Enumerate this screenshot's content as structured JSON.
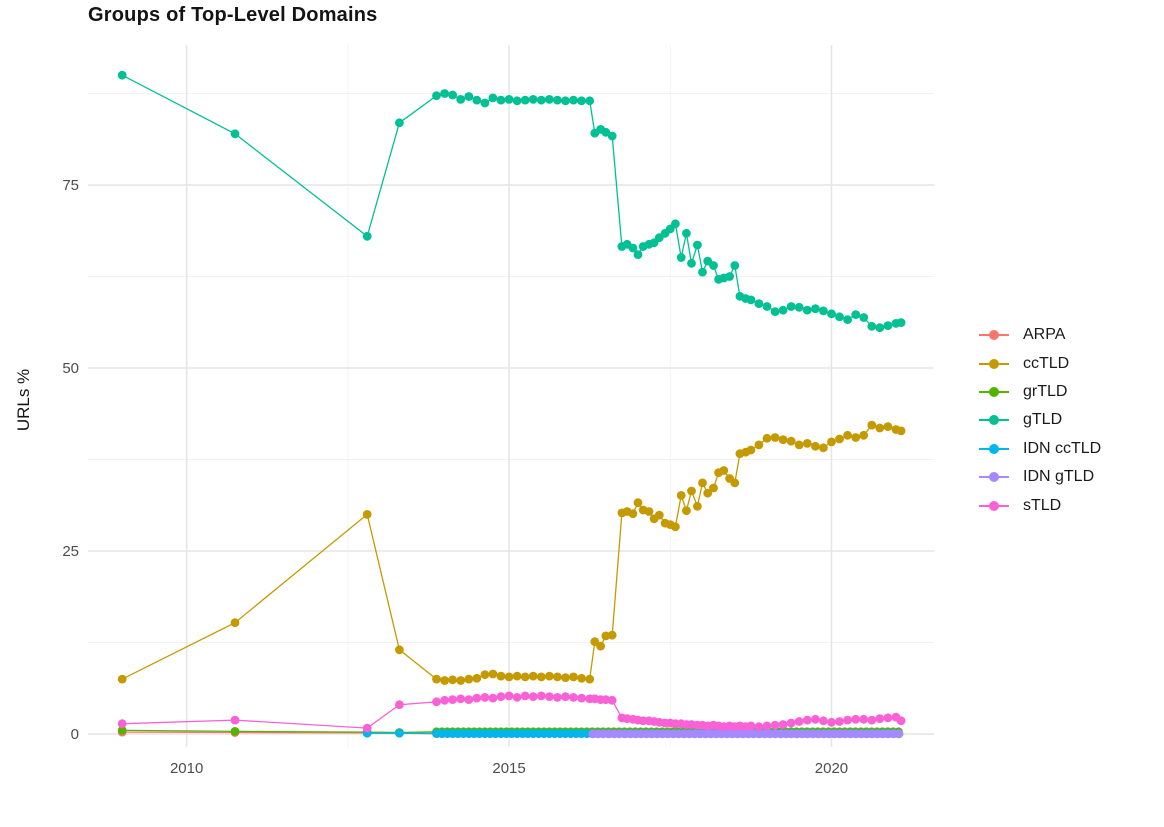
{
  "chart_data": {
    "type": "line",
    "title": "Groups of Top-Level Domains",
    "xlabel": "",
    "ylabel": "URLs %",
    "grid": true,
    "legend_position": "right",
    "xlim": [
      2008.47,
      2021.59
    ],
    "ylim": [
      -1.78,
      94.13
    ],
    "x_axis": {
      "ticks": [
        {
          "value": 2010,
          "label": "2010"
        },
        {
          "value": 2015,
          "label": "2015"
        },
        {
          "value": 2020,
          "label": "2020"
        }
      ],
      "minor": [
        2012.5,
        2017.5
      ]
    },
    "y_axis": {
      "ticks": [
        {
          "value": 0,
          "label": "0"
        },
        {
          "value": 25,
          "label": "25"
        },
        {
          "value": 50,
          "label": "50"
        },
        {
          "value": 75,
          "label": "75"
        }
      ],
      "minor": [
        12.5,
        37.5,
        62.5,
        87.5
      ]
    },
    "series": [
      {
        "name": "ARPA",
        "color": "#F8766D",
        "points": [
          [
            2009.0,
            0.25
          ],
          [
            2010.75,
            0.2
          ],
          [
            2012.8,
            0.15
          ],
          [
            2013.3,
            0.1
          ]
        ],
        "fill": {
          "from": 2013.875,
          "to": 2021.08,
          "step": 0.0833,
          "value": 0.05
        }
      },
      {
        "name": "ccTLD",
        "color": "#C49A00",
        "points": [
          [
            2009.0,
            7.5
          ],
          [
            2010.75,
            15.2
          ],
          [
            2012.8,
            30.0
          ],
          [
            2013.3,
            11.5
          ],
          [
            2013.875,
            7.5
          ],
          [
            2014.0,
            7.3
          ],
          [
            2014.125,
            7.4
          ],
          [
            2014.25,
            7.3
          ],
          [
            2014.375,
            7.5
          ],
          [
            2014.5,
            7.6
          ],
          [
            2014.625,
            8.1
          ],
          [
            2014.75,
            8.2
          ],
          [
            2014.875,
            7.9
          ],
          [
            2015.0,
            7.8
          ],
          [
            2015.125,
            7.9
          ],
          [
            2015.25,
            7.8
          ],
          [
            2015.375,
            7.9
          ],
          [
            2015.5,
            7.8
          ],
          [
            2015.625,
            7.9
          ],
          [
            2015.75,
            7.8
          ],
          [
            2015.875,
            7.7
          ],
          [
            2016.0,
            7.8
          ],
          [
            2016.125,
            7.6
          ],
          [
            2016.25,
            7.5
          ],
          [
            2016.33,
            12.6
          ],
          [
            2016.42,
            12.0
          ],
          [
            2016.5,
            13.4
          ],
          [
            2016.6,
            13.5
          ],
          [
            2016.75,
            30.2
          ],
          [
            2016.83,
            30.4
          ],
          [
            2016.92,
            30.1
          ],
          [
            2017.0,
            31.6
          ],
          [
            2017.08,
            30.6
          ],
          [
            2017.17,
            30.4
          ],
          [
            2017.25,
            29.4
          ],
          [
            2017.33,
            29.9
          ],
          [
            2017.42,
            28.8
          ],
          [
            2017.5,
            28.6
          ],
          [
            2017.58,
            28.3
          ],
          [
            2017.67,
            32.6
          ],
          [
            2017.75,
            30.5
          ],
          [
            2017.83,
            33.2
          ],
          [
            2017.92,
            31.1
          ],
          [
            2018.0,
            34.3
          ],
          [
            2018.08,
            32.9
          ],
          [
            2018.17,
            33.6
          ],
          [
            2018.25,
            35.7
          ],
          [
            2018.33,
            36.0
          ],
          [
            2018.42,
            34.9
          ],
          [
            2018.5,
            34.3
          ],
          [
            2018.58,
            38.3
          ],
          [
            2018.67,
            38.5
          ],
          [
            2018.75,
            38.8
          ],
          [
            2018.875,
            39.5
          ],
          [
            2019.0,
            40.4
          ],
          [
            2019.125,
            40.5
          ],
          [
            2019.25,
            40.2
          ],
          [
            2019.375,
            40.0
          ],
          [
            2019.5,
            39.5
          ],
          [
            2019.625,
            39.7
          ],
          [
            2019.75,
            39.3
          ],
          [
            2019.875,
            39.1
          ],
          [
            2020.0,
            39.9
          ],
          [
            2020.125,
            40.3
          ],
          [
            2020.25,
            40.8
          ],
          [
            2020.375,
            40.5
          ],
          [
            2020.5,
            40.8
          ],
          [
            2020.625,
            42.2
          ],
          [
            2020.75,
            41.8
          ],
          [
            2020.875,
            42.0
          ],
          [
            2021.0,
            41.6
          ],
          [
            2021.08,
            41.4
          ]
        ]
      },
      {
        "name": "grTLD",
        "color": "#53B400",
        "points": [
          [
            2009.0,
            0.5
          ],
          [
            2010.75,
            0.35
          ],
          [
            2012.8,
            0.25
          ],
          [
            2013.3,
            0.2
          ]
        ],
        "fill": {
          "from": 2013.875,
          "to": 2021.08,
          "step": 0.0833,
          "value": 0.3
        }
      },
      {
        "name": "gTLD",
        "color": "#00C094",
        "points": [
          [
            2009.0,
            90.0
          ],
          [
            2010.75,
            82.0
          ],
          [
            2012.8,
            68.0
          ],
          [
            2013.3,
            83.5
          ],
          [
            2013.875,
            87.2
          ],
          [
            2014.0,
            87.5
          ],
          [
            2014.125,
            87.3
          ],
          [
            2014.25,
            86.7
          ],
          [
            2014.375,
            87.1
          ],
          [
            2014.5,
            86.6
          ],
          [
            2014.625,
            86.2
          ],
          [
            2014.75,
            86.9
          ],
          [
            2014.875,
            86.6
          ],
          [
            2015.0,
            86.7
          ],
          [
            2015.125,
            86.5
          ],
          [
            2015.25,
            86.6
          ],
          [
            2015.375,
            86.7
          ],
          [
            2015.5,
            86.6
          ],
          [
            2015.625,
            86.7
          ],
          [
            2015.75,
            86.6
          ],
          [
            2015.875,
            86.5
          ],
          [
            2016.0,
            86.6
          ],
          [
            2016.125,
            86.5
          ],
          [
            2016.25,
            86.5
          ],
          [
            2016.33,
            82.1
          ],
          [
            2016.42,
            82.6
          ],
          [
            2016.5,
            82.2
          ],
          [
            2016.6,
            81.7
          ],
          [
            2016.75,
            66.6
          ],
          [
            2016.83,
            66.9
          ],
          [
            2016.92,
            66.4
          ],
          [
            2017.0,
            65.5
          ],
          [
            2017.08,
            66.6
          ],
          [
            2017.17,
            66.9
          ],
          [
            2017.25,
            67.1
          ],
          [
            2017.33,
            67.8
          ],
          [
            2017.42,
            68.4
          ],
          [
            2017.5,
            69.0
          ],
          [
            2017.58,
            69.7
          ],
          [
            2017.67,
            65.1
          ],
          [
            2017.75,
            68.4
          ],
          [
            2017.83,
            64.3
          ],
          [
            2017.92,
            66.8
          ],
          [
            2018.0,
            63.1
          ],
          [
            2018.08,
            64.6
          ],
          [
            2018.17,
            64.0
          ],
          [
            2018.25,
            62.1
          ],
          [
            2018.33,
            62.3
          ],
          [
            2018.42,
            62.5
          ],
          [
            2018.5,
            64.0
          ],
          [
            2018.58,
            59.8
          ],
          [
            2018.67,
            59.5
          ],
          [
            2018.75,
            59.3
          ],
          [
            2018.875,
            58.8
          ],
          [
            2019.0,
            58.4
          ],
          [
            2019.125,
            57.7
          ],
          [
            2019.25,
            57.9
          ],
          [
            2019.375,
            58.4
          ],
          [
            2019.5,
            58.3
          ],
          [
            2019.625,
            57.9
          ],
          [
            2019.75,
            58.1
          ],
          [
            2019.875,
            57.8
          ],
          [
            2020.0,
            57.4
          ],
          [
            2020.125,
            57.0
          ],
          [
            2020.25,
            56.6
          ],
          [
            2020.375,
            57.3
          ],
          [
            2020.5,
            56.9
          ],
          [
            2020.625,
            55.7
          ],
          [
            2020.75,
            55.5
          ],
          [
            2020.875,
            55.8
          ],
          [
            2021.0,
            56.1
          ],
          [
            2021.08,
            56.2
          ]
        ]
      },
      {
        "name": "IDN ccTLD",
        "color": "#00B6EB",
        "points": [
          [
            2012.8,
            0.1
          ],
          [
            2013.3,
            0.1
          ]
        ],
        "fill": {
          "from": 2013.875,
          "to": 2021.08,
          "step": 0.0833,
          "value": 0.07
        }
      },
      {
        "name": "IDN gTLD",
        "color": "#A58AFF",
        "points": [],
        "fill": {
          "from": 2016.3,
          "to": 2021.08,
          "step": 0.0833,
          "value": 0.03
        }
      },
      {
        "name": "sTLD",
        "color": "#FB61D7",
        "points": [
          [
            2009.0,
            1.4
          ],
          [
            2010.75,
            1.9
          ],
          [
            2012.8,
            0.8
          ],
          [
            2013.3,
            4.0
          ],
          [
            2013.875,
            4.4
          ],
          [
            2014.0,
            4.6
          ],
          [
            2014.125,
            4.7
          ],
          [
            2014.25,
            4.8
          ],
          [
            2014.375,
            4.7
          ],
          [
            2014.5,
            4.9
          ],
          [
            2014.625,
            5.0
          ],
          [
            2014.75,
            4.9
          ],
          [
            2014.875,
            5.1
          ],
          [
            2015.0,
            5.2
          ],
          [
            2015.125,
            5.0
          ],
          [
            2015.25,
            5.2
          ],
          [
            2015.375,
            5.1
          ],
          [
            2015.5,
            5.2
          ],
          [
            2015.625,
            5.1
          ],
          [
            2015.75,
            5.0
          ],
          [
            2015.875,
            5.1
          ],
          [
            2016.0,
            5.0
          ],
          [
            2016.125,
            4.9
          ],
          [
            2016.25,
            4.8
          ],
          [
            2016.33,
            4.8
          ],
          [
            2016.42,
            4.7
          ],
          [
            2016.5,
            4.7
          ],
          [
            2016.6,
            4.6
          ],
          [
            2016.75,
            2.2
          ],
          [
            2016.83,
            2.1
          ],
          [
            2016.92,
            2.0
          ],
          [
            2017.0,
            1.9
          ],
          [
            2017.08,
            1.8
          ],
          [
            2017.17,
            1.8
          ],
          [
            2017.25,
            1.7
          ],
          [
            2017.33,
            1.6
          ],
          [
            2017.42,
            1.5
          ],
          [
            2017.5,
            1.5
          ],
          [
            2017.58,
            1.4
          ],
          [
            2017.67,
            1.4
          ],
          [
            2017.75,
            1.3
          ],
          [
            2017.83,
            1.3
          ],
          [
            2017.92,
            1.2
          ],
          [
            2018.0,
            1.2
          ],
          [
            2018.08,
            1.1
          ],
          [
            2018.17,
            1.2
          ],
          [
            2018.25,
            1.1
          ],
          [
            2018.33,
            1.0
          ],
          [
            2018.42,
            1.1
          ],
          [
            2018.5,
            1.0
          ],
          [
            2018.58,
            1.1
          ],
          [
            2018.67,
            1.0
          ],
          [
            2018.75,
            1.1
          ],
          [
            2018.875,
            1.0
          ],
          [
            2019.0,
            1.1
          ],
          [
            2019.125,
            1.2
          ],
          [
            2019.25,
            1.3
          ],
          [
            2019.375,
            1.5
          ],
          [
            2019.5,
            1.7
          ],
          [
            2019.625,
            1.9
          ],
          [
            2019.75,
            2.0
          ],
          [
            2019.875,
            1.8
          ],
          [
            2020.0,
            1.6
          ],
          [
            2020.125,
            1.7
          ],
          [
            2020.25,
            1.9
          ],
          [
            2020.375,
            2.0
          ],
          [
            2020.5,
            2.0
          ],
          [
            2020.625,
            1.9
          ],
          [
            2020.75,
            2.1
          ],
          [
            2020.875,
            2.2
          ],
          [
            2021.0,
            2.3
          ],
          [
            2021.08,
            1.8
          ]
        ]
      }
    ],
    "style": {
      "grid_major_color": "#e6e6e6",
      "grid_minor_color": "#f1f1f1",
      "tick_label_color": "#4d4d4d",
      "point_radius": 4.4,
      "line_width": 1.3
    }
  }
}
